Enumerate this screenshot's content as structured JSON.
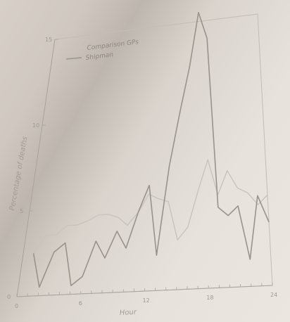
{
  "chart_data": {
    "type": "line",
    "xlabel": "Hour",
    "ylabel": "Percentage of deaths",
    "xlim": [
      0,
      24
    ],
    "ylim": [
      0,
      15
    ],
    "x_ticks": [
      0,
      6,
      12,
      18,
      24
    ],
    "y_ticks": [
      0,
      5,
      10,
      15
    ],
    "legend_position": "top-left",
    "series": [
      {
        "name": "Comparison GPs",
        "color": "#c9c3bc",
        "x": [
          1,
          2,
          3,
          4,
          5,
          6,
          7,
          8,
          9,
          10,
          11,
          12,
          13,
          14,
          15,
          16,
          17,
          18,
          19,
          20,
          21,
          22,
          23,
          24
        ],
        "y": [
          2.5,
          3.5,
          3.5,
          4.0,
          4.0,
          4.2,
          4.5,
          4.5,
          4.3,
          3.8,
          4.5,
          5.5,
          5.2,
          5.0,
          2.8,
          3.5,
          5.5,
          7.2,
          5.2,
          6.5,
          5.5,
          5.2,
          4.5,
          5.0
        ]
      },
      {
        "name": "Shipman",
        "color": "#9a938c",
        "x": [
          1,
          2,
          3,
          4,
          5,
          6,
          7,
          8,
          9,
          10,
          11,
          12,
          13,
          14,
          15,
          16,
          17,
          18,
          19,
          20,
          21,
          22,
          23,
          24
        ],
        "y": [
          2.5,
          0.5,
          2.5,
          3.0,
          0.5,
          1.0,
          3.0,
          2.0,
          3.5,
          2.5,
          4.5,
          6.0,
          2.0,
          7.0,
          10.0,
          12.5,
          15.5,
          14.0,
          4.5,
          4.0,
          4.5,
          1.5,
          5.0,
          3.5
        ]
      }
    ]
  }
}
